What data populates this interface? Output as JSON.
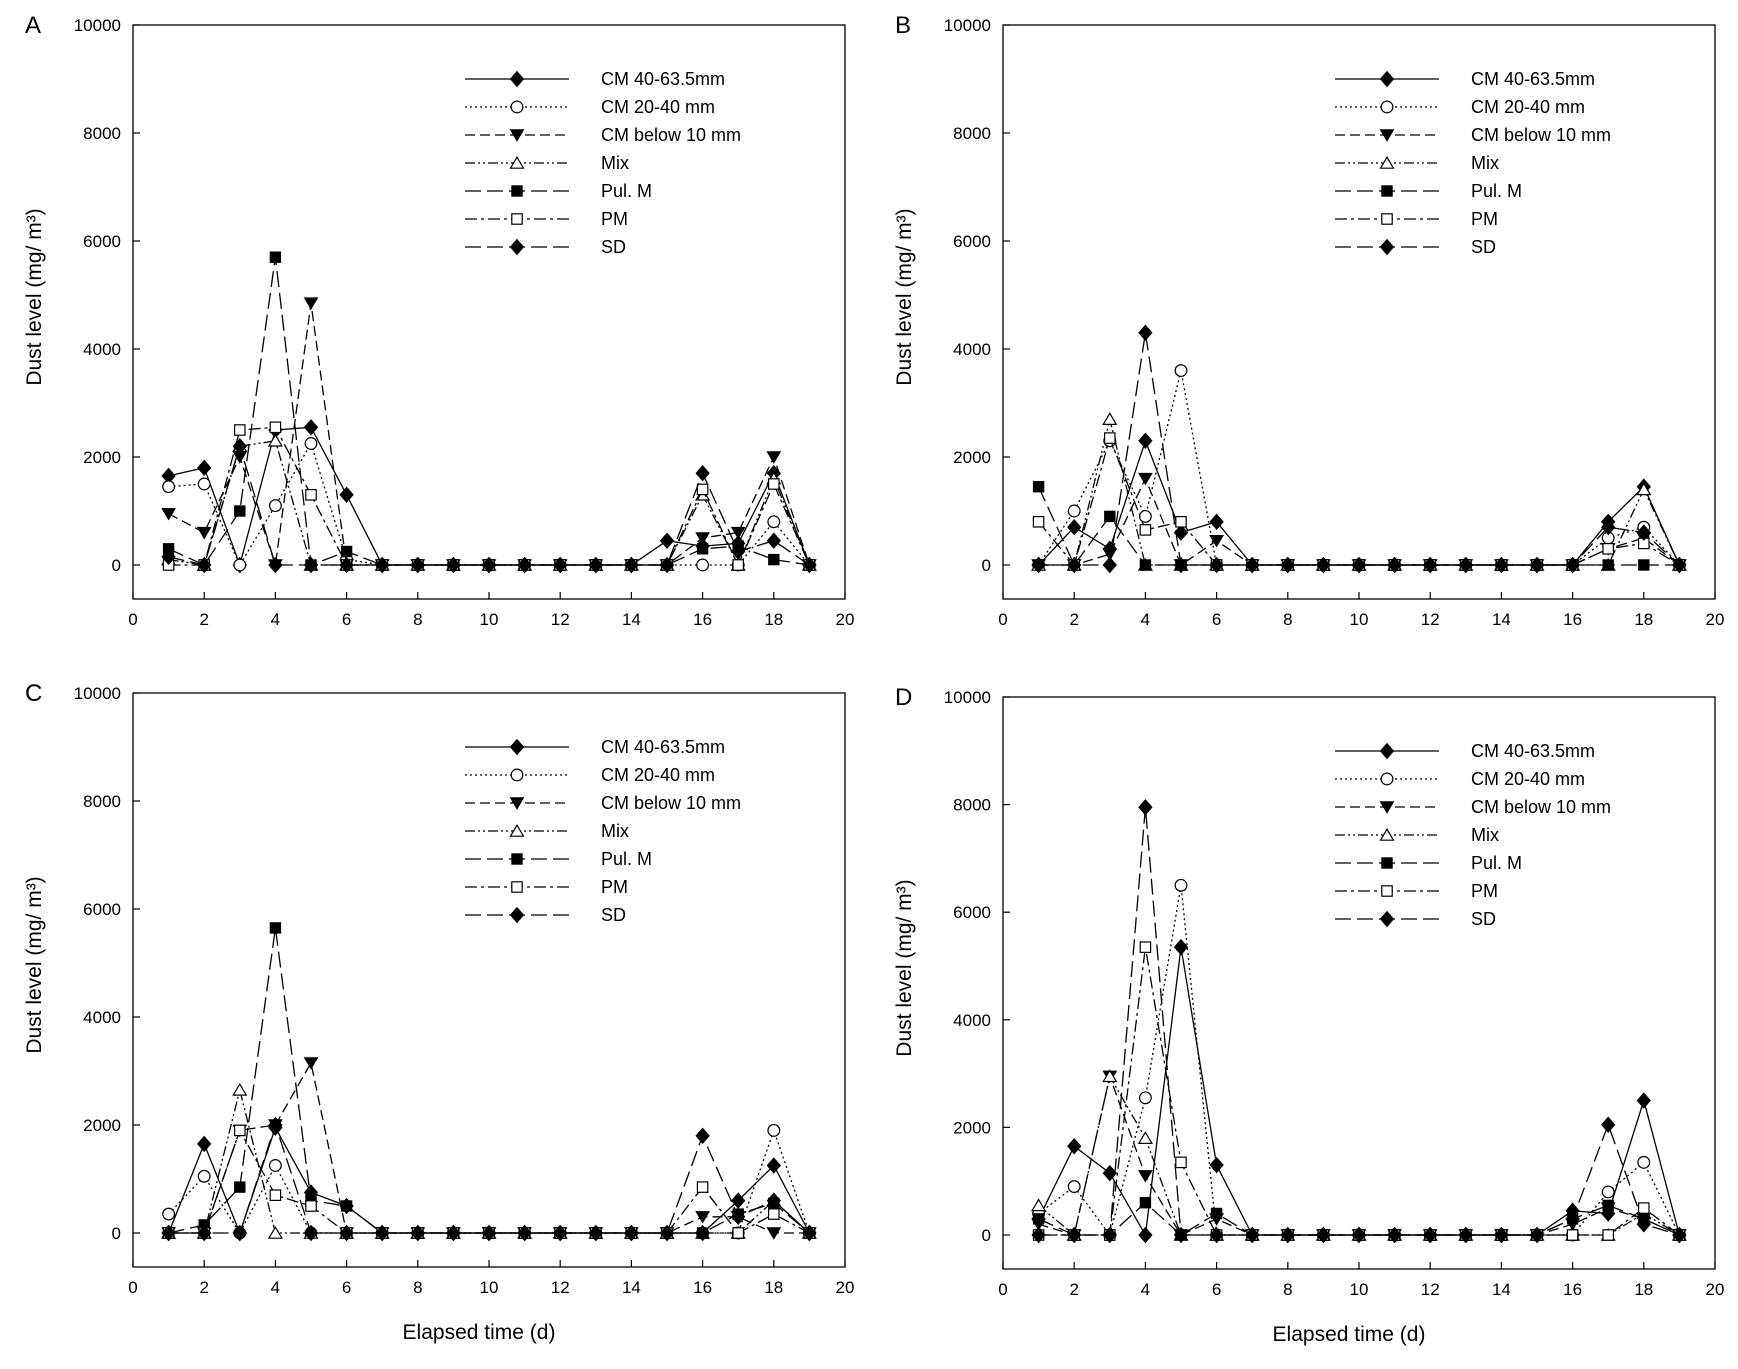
{
  "figure": {
    "xlabel": "Elapsed time (d)",
    "ylabel": "Dust level (mg/ m³)"
  },
  "chart_data": [
    {
      "panel": "A",
      "type": "line",
      "xlabel": "",
      "ylabel": "Dust level (mg/ m³)",
      "xlim": [
        0,
        20
      ],
      "ylim": [
        0,
        10000
      ],
      "xticks": [
        0,
        2,
        4,
        6,
        8,
        10,
        12,
        14,
        16,
        18,
        20
      ],
      "yticks": [
        0,
        2000,
        4000,
        6000,
        8000,
        10000
      ],
      "legend_position": "top-right",
      "x": [
        1,
        2,
        3,
        4,
        5,
        6,
        7,
        8,
        9,
        10,
        11,
        12,
        13,
        14,
        15,
        16,
        17,
        18,
        19
      ],
      "series": [
        {
          "name": "CM 40-63.5mm",
          "marker": "diamond-filled",
          "dash": "solid",
          "values": [
            1650,
            1800,
            0,
            2500,
            2550,
            1300,
            0,
            0,
            0,
            0,
            0,
            0,
            0,
            0,
            450,
            350,
            400,
            1700,
            0
          ]
        },
        {
          "name": "CM 20-40 mm",
          "marker": "circle-open",
          "dash": "dot",
          "values": [
            1450,
            1500,
            0,
            1100,
            2250,
            100,
            0,
            0,
            0,
            0,
            0,
            0,
            0,
            0,
            0,
            0,
            0,
            800,
            0
          ]
        },
        {
          "name": "CM below 10 mm",
          "marker": "triangle-down-filled",
          "dash": "dash",
          "values": [
            950,
            600,
            2000,
            0,
            4850,
            0,
            0,
            0,
            0,
            0,
            0,
            0,
            0,
            0,
            0,
            500,
            600,
            2000,
            0
          ]
        },
        {
          "name": "Mix",
          "marker": "triangle-up-open",
          "dash": "dashdotdot",
          "values": [
            100,
            0,
            2200,
            2300,
            0,
            0,
            0,
            0,
            0,
            0,
            0,
            0,
            0,
            0,
            0,
            1300,
            0,
            1600,
            0
          ]
        },
        {
          "name": "Pul. M",
          "marker": "square-filled",
          "dash": "longdash",
          "values": [
            300,
            0,
            1000,
            5700,
            0,
            250,
            0,
            0,
            0,
            0,
            0,
            0,
            0,
            0,
            0,
            300,
            350,
            100,
            0
          ]
        },
        {
          "name": "PM",
          "marker": "square-open",
          "dash": "dashdot",
          "values": [
            0,
            0,
            2500,
            2550,
            1300,
            0,
            0,
            0,
            0,
            0,
            0,
            0,
            0,
            0,
            0,
            1400,
            0,
            1500,
            0
          ]
        },
        {
          "name": "SD",
          "marker": "diamond-filled",
          "dash": "longdash",
          "values": [
            150,
            0,
            2200,
            0,
            0,
            0,
            0,
            0,
            0,
            0,
            0,
            0,
            0,
            0,
            0,
            1700,
            250,
            450,
            0
          ]
        }
      ]
    },
    {
      "panel": "B",
      "type": "line",
      "xlabel": "",
      "ylabel": "Dust level (mg/ m³)",
      "xlim": [
        0,
        20
      ],
      "ylim": [
        0,
        10000
      ],
      "xticks": [
        0,
        2,
        4,
        6,
        8,
        10,
        12,
        14,
        16,
        18,
        20
      ],
      "yticks": [
        0,
        2000,
        4000,
        6000,
        8000,
        10000
      ],
      "legend_position": "top-right",
      "x": [
        1,
        2,
        3,
        4,
        5,
        6,
        7,
        8,
        9,
        10,
        11,
        12,
        13,
        14,
        15,
        16,
        17,
        18,
        19
      ],
      "series": [
        {
          "name": "CM 40-63.5mm",
          "marker": "diamond-filled",
          "dash": "solid",
          "values": [
            0,
            700,
            300,
            2300,
            600,
            800,
            0,
            0,
            0,
            0,
            0,
            0,
            0,
            0,
            0,
            0,
            800,
            1450,
            0
          ]
        },
        {
          "name": "CM 20-40 mm",
          "marker": "circle-open",
          "dash": "dot",
          "values": [
            0,
            1000,
            2300,
            900,
            3600,
            0,
            0,
            0,
            0,
            0,
            0,
            0,
            0,
            0,
            0,
            0,
            500,
            700,
            0
          ]
        },
        {
          "name": "CM below 10 mm",
          "marker": "triangle-down-filled",
          "dash": "dash",
          "values": [
            0,
            0,
            200,
            1600,
            0,
            450,
            0,
            0,
            0,
            0,
            0,
            0,
            0,
            0,
            0,
            0,
            300,
            500,
            0
          ]
        },
        {
          "name": "Mix",
          "marker": "triangle-up-open",
          "dash": "dashdotdot",
          "values": [
            0,
            0,
            2700,
            0,
            0,
            0,
            0,
            0,
            0,
            0,
            0,
            0,
            0,
            0,
            0,
            0,
            0,
            1400,
            0
          ]
        },
        {
          "name": "Pul. M",
          "marker": "square-filled",
          "dash": "longdash",
          "values": [
            1450,
            0,
            900,
            0,
            0,
            0,
            0,
            0,
            0,
            0,
            0,
            0,
            0,
            0,
            0,
            0,
            0,
            0,
            0
          ]
        },
        {
          "name": "PM",
          "marker": "square-open",
          "dash": "dashdot",
          "values": [
            800,
            0,
            2350,
            650,
            800,
            0,
            0,
            0,
            0,
            0,
            0,
            0,
            0,
            0,
            0,
            0,
            300,
            400,
            0
          ]
        },
        {
          "name": "SD",
          "marker": "diamond-filled",
          "dash": "longdash",
          "values": [
            0,
            0,
            0,
            4300,
            0,
            0,
            0,
            0,
            0,
            0,
            0,
            0,
            0,
            0,
            0,
            0,
            700,
            600,
            0
          ]
        }
      ]
    },
    {
      "panel": "C",
      "type": "line",
      "xlabel": "",
      "ylabel": "Dust level (mg/ m³)",
      "xlim": [
        0,
        20
      ],
      "ylim": [
        0,
        10000
      ],
      "xticks": [
        0,
        2,
        4,
        6,
        8,
        10,
        12,
        14,
        16,
        18,
        20
      ],
      "yticks": [
        0,
        2000,
        4000,
        6000,
        8000,
        10000
      ],
      "legend_position": "top-right",
      "x": [
        1,
        2,
        3,
        4,
        5,
        6,
        7,
        8,
        9,
        10,
        11,
        12,
        13,
        14,
        15,
        16,
        17,
        18,
        19
      ],
      "series": [
        {
          "name": "CM 40-63.5mm",
          "marker": "diamond-filled",
          "dash": "solid",
          "values": [
            0,
            1650,
            0,
            1950,
            750,
            500,
            0,
            0,
            0,
            0,
            0,
            0,
            0,
            0,
            0,
            0,
            600,
            1250,
            0
          ]
        },
        {
          "name": "CM 20-40 mm",
          "marker": "circle-open",
          "dash": "dot",
          "values": [
            350,
            1050,
            0,
            1250,
            0,
            0,
            0,
            0,
            0,
            0,
            0,
            0,
            0,
            0,
            0,
            0,
            0,
            1900,
            0
          ]
        },
        {
          "name": "CM below 10 mm",
          "marker": "triangle-down-filled",
          "dash": "dash",
          "values": [
            0,
            0,
            1900,
            2000,
            3150,
            0,
            0,
            0,
            0,
            0,
            0,
            0,
            0,
            0,
            0,
            300,
            300,
            0,
            0
          ]
        },
        {
          "name": "Mix",
          "marker": "triangle-up-open",
          "dash": "dashdotdot",
          "values": [
            0,
            0,
            2650,
            0,
            0,
            0,
            0,
            0,
            0,
            0,
            0,
            0,
            0,
            0,
            0,
            0,
            0,
            600,
            0
          ]
        },
        {
          "name": "Pul. M",
          "marker": "square-filled",
          "dash": "longdash",
          "values": [
            0,
            150,
            850,
            5650,
            600,
            500,
            0,
            0,
            0,
            0,
            0,
            0,
            0,
            0,
            0,
            0,
            350,
            550,
            0
          ]
        },
        {
          "name": "PM",
          "marker": "square-open",
          "dash": "dashdot",
          "values": [
            0,
            0,
            1900,
            700,
            500,
            0,
            0,
            0,
            0,
            0,
            0,
            0,
            0,
            0,
            0,
            850,
            0,
            350,
            0
          ]
        },
        {
          "name": "SD",
          "marker": "diamond-filled",
          "dash": "longdash",
          "values": [
            0,
            0,
            0,
            2000,
            0,
            0,
            0,
            0,
            0,
            0,
            0,
            0,
            0,
            0,
            0,
            1800,
            300,
            600,
            0
          ]
        }
      ]
    },
    {
      "panel": "D",
      "type": "line",
      "xlabel": "Elapsed time (d)",
      "ylabel": "Dust level (mg/ m³)",
      "xlim": [
        0,
        20
      ],
      "ylim": [
        0,
        10000
      ],
      "xticks": [
        0,
        2,
        4,
        6,
        8,
        10,
        12,
        14,
        16,
        18,
        20
      ],
      "yticks": [
        0,
        2000,
        4000,
        6000,
        8000,
        10000
      ],
      "legend_position": "top-right",
      "x": [
        1,
        2,
        3,
        4,
        5,
        6,
        7,
        8,
        9,
        10,
        11,
        12,
        13,
        14,
        15,
        16,
        17,
        18,
        19
      ],
      "series": [
        {
          "name": "CM 40-63.5mm",
          "marker": "diamond-filled",
          "dash": "solid",
          "values": [
            300,
            1650,
            1150,
            0,
            5350,
            1300,
            0,
            0,
            0,
            0,
            0,
            0,
            0,
            0,
            0,
            450,
            400,
            2500,
            0
          ]
        },
        {
          "name": "CM 20-40 mm",
          "marker": "circle-open",
          "dash": "dot",
          "values": [
            400,
            900,
            0,
            2550,
            6500,
            0,
            0,
            0,
            0,
            0,
            0,
            0,
            0,
            0,
            0,
            0,
            800,
            1350,
            0
          ]
        },
        {
          "name": "CM below 10 mm",
          "marker": "triangle-down-filled",
          "dash": "dash",
          "values": [
            200,
            0,
            2950,
            1100,
            0,
            300,
            0,
            0,
            0,
            0,
            0,
            0,
            0,
            0,
            0,
            200,
            500,
            300,
            0
          ]
        },
        {
          "name": "Mix",
          "marker": "triangle-up-open",
          "dash": "dashdotdot",
          "values": [
            550,
            0,
            2950,
            1800,
            0,
            0,
            0,
            0,
            0,
            0,
            0,
            0,
            0,
            0,
            0,
            0,
            0,
            400,
            0
          ]
        },
        {
          "name": "Pul. M",
          "marker": "square-filled",
          "dash": "longdash",
          "values": [
            300,
            0,
            0,
            600,
            0,
            400,
            0,
            0,
            0,
            0,
            0,
            0,
            0,
            0,
            0,
            300,
            550,
            300,
            0
          ]
        },
        {
          "name": "PM",
          "marker": "square-open",
          "dash": "dashdot",
          "values": [
            0,
            0,
            0,
            5350,
            1350,
            0,
            0,
            0,
            0,
            0,
            0,
            0,
            0,
            0,
            0,
            0,
            0,
            500,
            0
          ]
        },
        {
          "name": "SD",
          "marker": "diamond-filled",
          "dash": "longdash",
          "values": [
            0,
            0,
            0,
            7950,
            0,
            0,
            0,
            0,
            0,
            0,
            0,
            0,
            0,
            0,
            0,
            300,
            2050,
            200,
            0
          ]
        }
      ]
    }
  ]
}
